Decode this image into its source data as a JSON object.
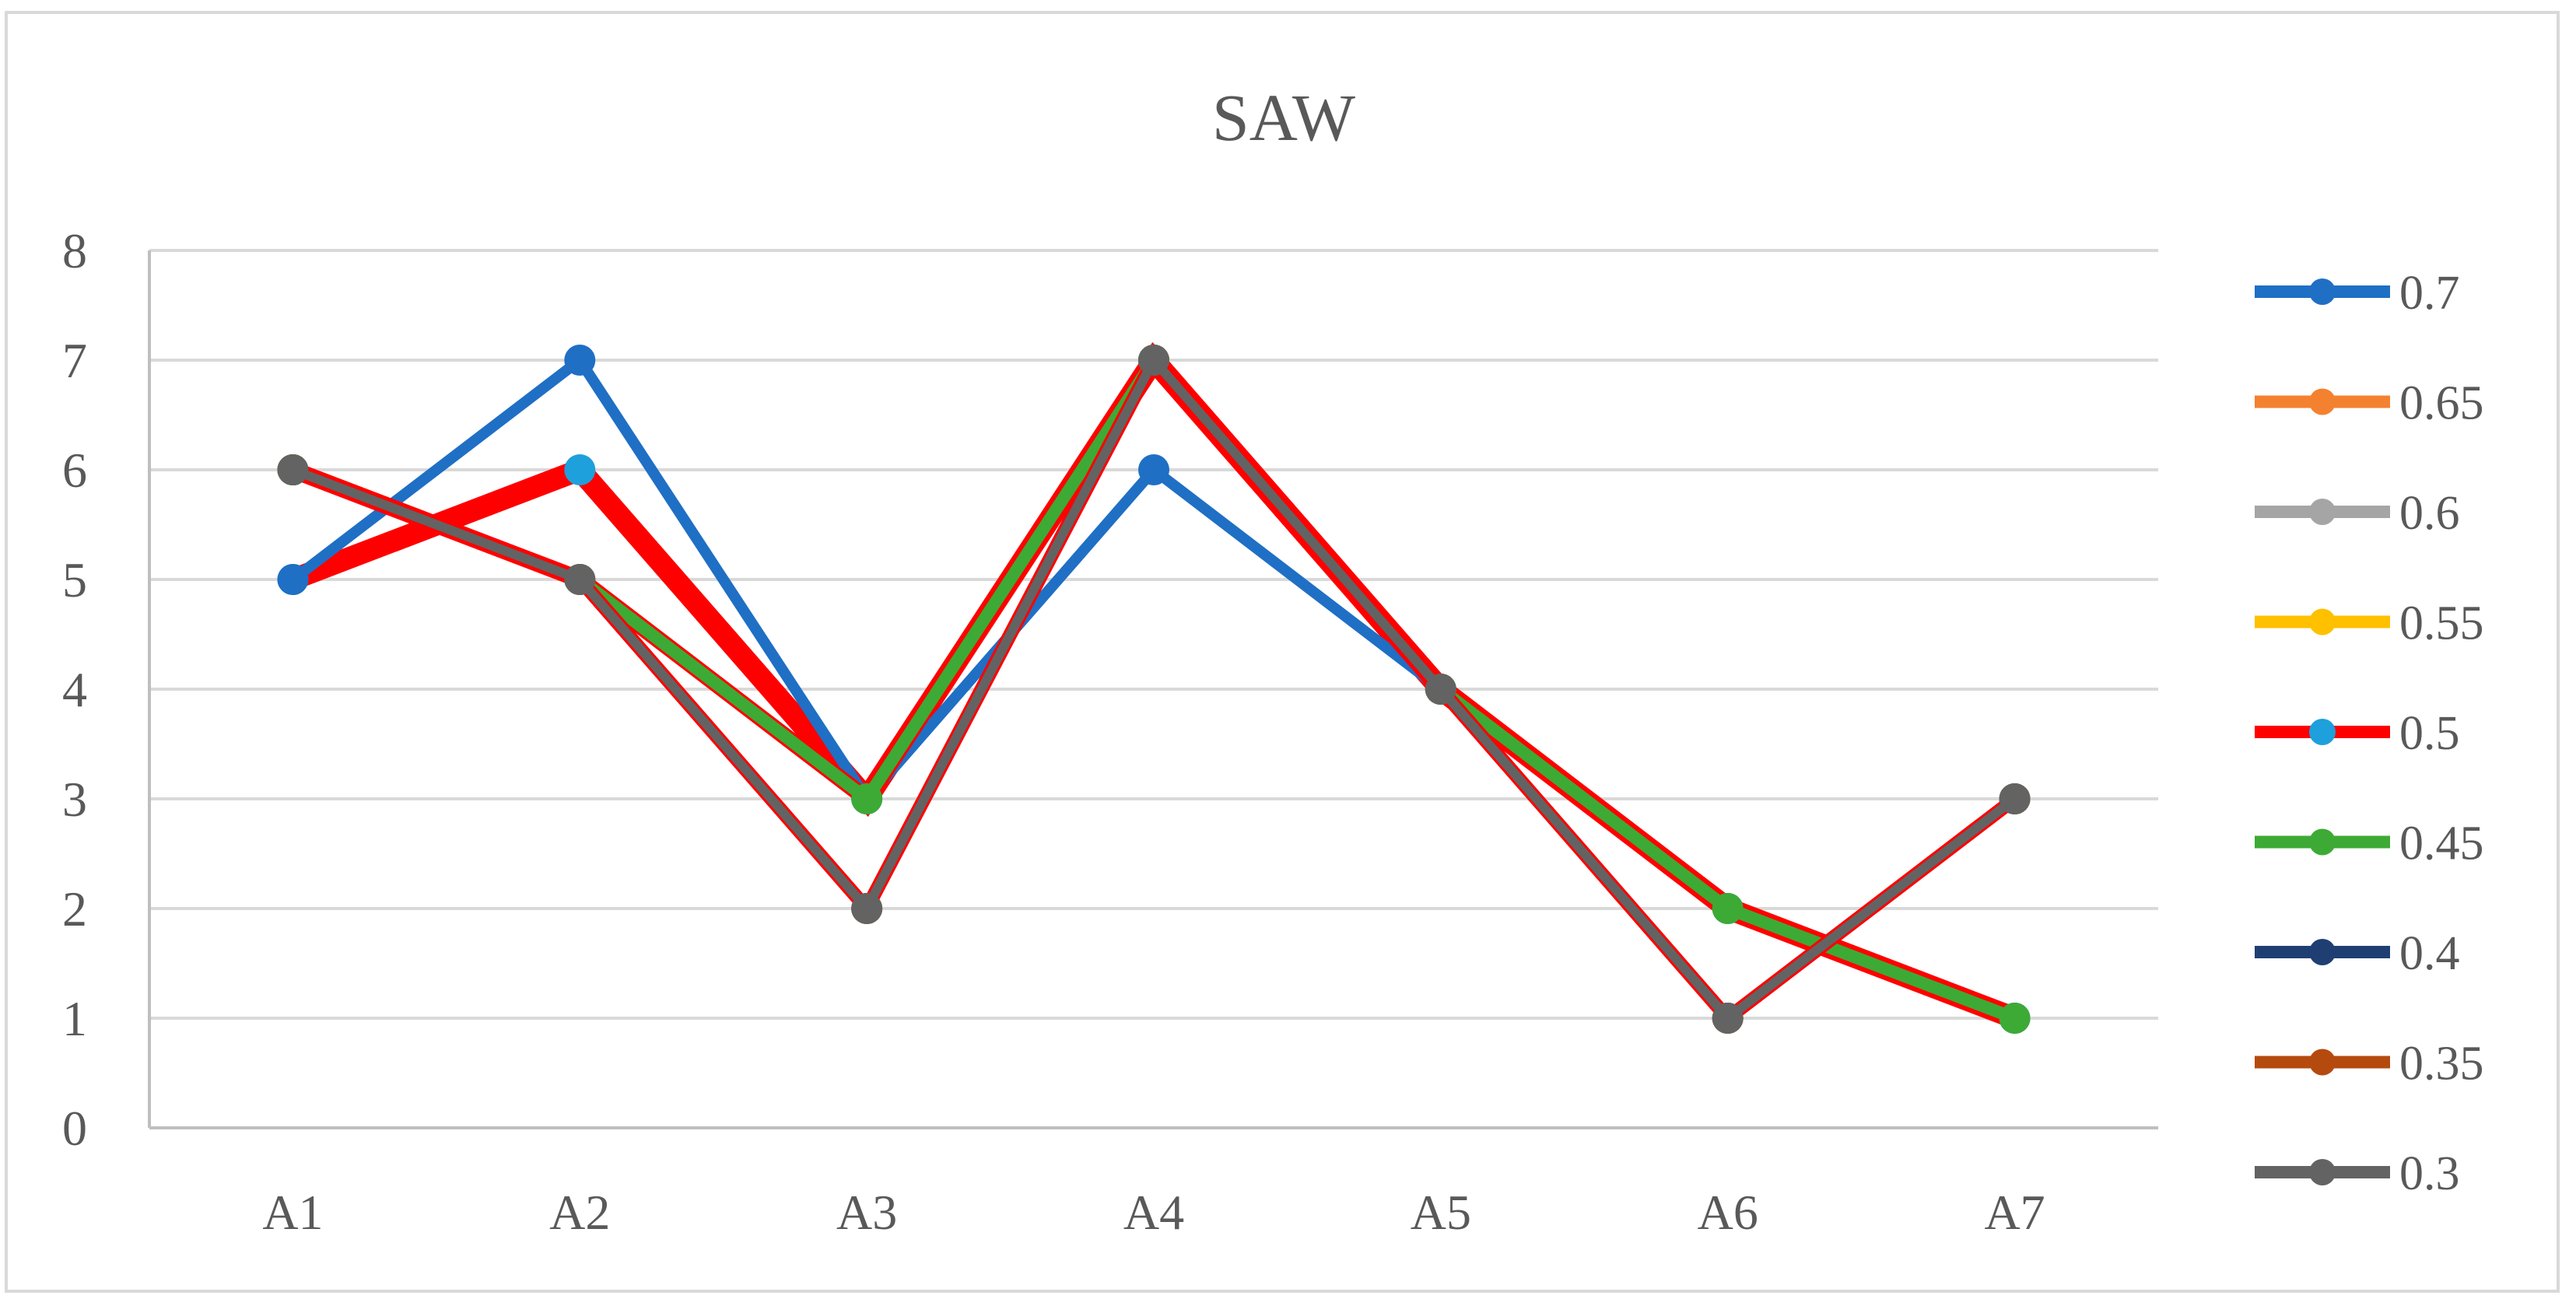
{
  "chart_data": {
    "type": "line",
    "title": "SAW",
    "xlabel": "",
    "ylabel": "",
    "categories": [
      "A1",
      "A2",
      "A3",
      "A4",
      "A5",
      "A6",
      "A7"
    ],
    "ylim": [
      0,
      8
    ],
    "yticks": [
      "0",
      "1",
      "2",
      "3",
      "4",
      "5",
      "6",
      "7",
      "8"
    ],
    "grid": true,
    "legend_position": "right",
    "series": [
      {
        "name": "0.7",
        "color": "#1f6fc5",
        "values": [
          5,
          7,
          3,
          6,
          4,
          2,
          1
        ]
      },
      {
        "name": "0.65",
        "color": "#f4812f",
        "values": [
          6,
          5,
          2,
          7,
          4,
          1,
          3
        ]
      },
      {
        "name": "0.6",
        "color": "#a5a5a5",
        "values": [
          6,
          5,
          2,
          7,
          4,
          1,
          3
        ]
      },
      {
        "name": "0.55",
        "color": "#ffc000",
        "values": [
          6,
          5,
          2,
          7,
          4,
          1,
          3
        ]
      },
      {
        "name": "0.5",
        "color": "#ff0000",
        "marker_color": "#1ea0dc",
        "values": [
          5,
          6,
          3,
          7,
          4,
          2,
          1
        ]
      },
      {
        "name": "0.45",
        "color": "#3daa35",
        "values": [
          6,
          5,
          3,
          7,
          4,
          2,
          1
        ]
      },
      {
        "name": "0.4",
        "color": "#1f3f73",
        "values": [
          6,
          5,
          2,
          7,
          4,
          1,
          3
        ]
      },
      {
        "name": "0.35",
        "color": "#b54a0e",
        "values": [
          6,
          5,
          2,
          7,
          4,
          1,
          3
        ]
      },
      {
        "name": "0.3",
        "color": "#636363",
        "values": [
          6,
          5,
          2,
          7,
          4,
          1,
          3
        ]
      }
    ]
  }
}
